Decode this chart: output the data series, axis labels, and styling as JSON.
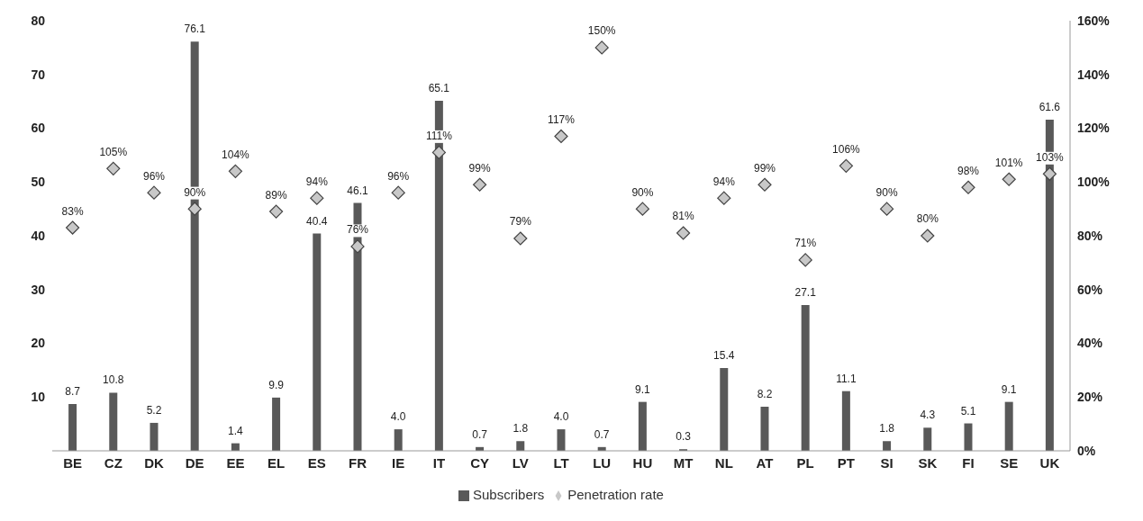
{
  "chart_data": {
    "type": "bar",
    "categories": [
      "BE",
      "CZ",
      "DK",
      "DE",
      "EE",
      "EL",
      "ES",
      "FR",
      "IE",
      "IT",
      "CY",
      "LV",
      "LT",
      "LU",
      "HU",
      "MT",
      "NL",
      "AT",
      "PL",
      "PT",
      "SI",
      "SK",
      "FI",
      "SE",
      "UK"
    ],
    "series": [
      {
        "name": "Subscribers",
        "color": "#595959",
        "values": [
          8.7,
          10.8,
          5.2,
          76.1,
          1.4,
          9.9,
          40.4,
          46.1,
          4.0,
          65.1,
          0.7,
          1.8,
          4.0,
          0.7,
          9.1,
          0.3,
          15.4,
          8.2,
          27.1,
          11.1,
          1.8,
          4.3,
          5.1,
          9.1,
          61.6
        ],
        "value_labels": [
          "8.7",
          "10.8",
          "5.2",
          "76.1",
          "1.4",
          "9.9",
          "40.4",
          "46.1",
          "4.0",
          "65.1",
          "0.7",
          "1.8",
          "4.0",
          "0.7",
          "9.1",
          "0.3",
          "15.4",
          "8.2",
          "27.1",
          "11.1",
          "1.8",
          "4.3",
          "5.1",
          "9.1",
          "61.6"
        ]
      },
      {
        "name": "Penetration rate",
        "type": "scatter",
        "axis": "y2",
        "color": "#c8c8c8",
        "values": [
          83,
          105,
          96,
          90,
          104,
          89,
          94,
          76,
          96,
          111,
          99,
          79,
          117,
          150,
          90,
          81,
          94,
          99,
          71,
          106,
          90,
          80,
          98,
          101,
          103
        ],
        "value_labels": [
          "83%",
          "105%",
          "96%",
          "90%",
          "104%",
          "89%",
          "94%",
          "76%",
          "96%",
          "111%",
          "99%",
          "79%",
          "117%",
          "150%",
          "90%",
          "81%",
          "94%",
          "99%",
          "71%",
          "106%",
          "90%",
          "80%",
          "98%",
          "101%",
          "103%"
        ]
      }
    ],
    "ylim": [
      0,
      80
    ],
    "yticks": [
      10,
      20,
      30,
      40,
      50,
      60,
      70,
      80
    ],
    "y2lim": [
      0,
      160
    ],
    "y2ticks": [
      {
        "value": 0,
        "label": "0%"
      },
      {
        "value": 20,
        "label": "20%"
      },
      {
        "value": 40,
        "label": "40%"
      },
      {
        "value": 60,
        "label": "60%"
      },
      {
        "value": 80,
        "label": "80%"
      },
      {
        "value": 100,
        "label": "100%"
      },
      {
        "value": 120,
        "label": "120%"
      },
      {
        "value": 140,
        "label": "140%"
      },
      {
        "value": 160,
        "label": "160%"
      }
    ],
    "legend": "bottom",
    "marker": "diamond"
  }
}
